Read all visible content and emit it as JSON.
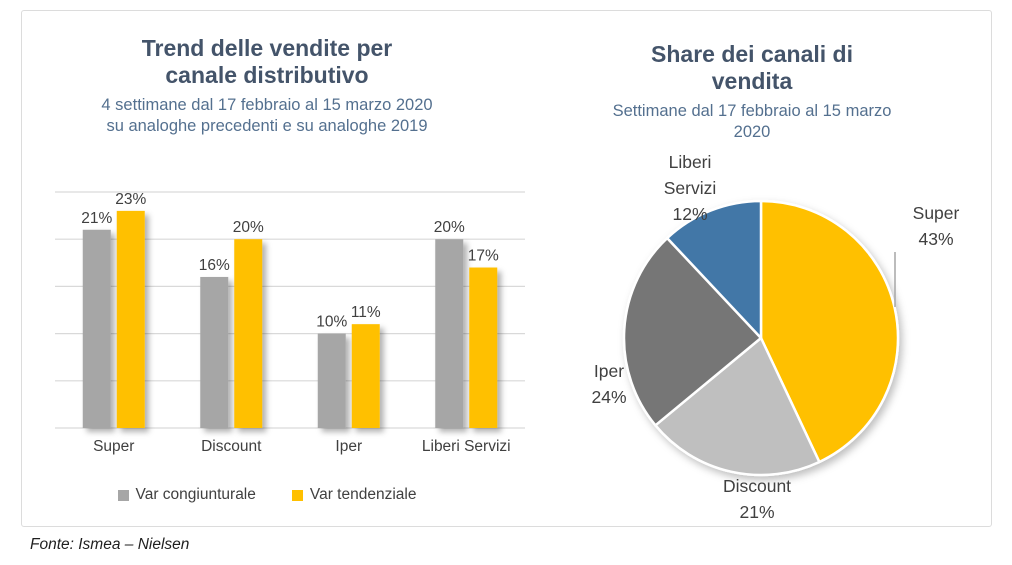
{
  "source_note": "Fonte: Ismea – Nielsen",
  "colors": {
    "title_text": "#44546A",
    "subtitle_text": "#54708F",
    "chart_text": "#404040",
    "gridline": "#D9D9D9",
    "container_border": "#DCDCDC",
    "bar_gray": "#A6A6A6",
    "bar_yellow": "#FFC000",
    "pie_light_gray": "#BFBFBF",
    "pie_dark_gray": "#767676",
    "pie_blue": "#4377A7"
  },
  "chart_data": [
    {
      "type": "bar",
      "title": "Trend delle vendite per canale distributivo",
      "subtitle": "4 settimane dal 17 febbraio al 15 marzo 2020 su analoghe precedenti e su analoghe 2019",
      "categories": [
        "Super",
        "Discount",
        "Iper",
        "Liberi Servizi"
      ],
      "series": [
        {
          "name": "Var congiunturale",
          "color": "#A6A6A6",
          "values": [
            21,
            16,
            10,
            20
          ]
        },
        {
          "name": "Var tendenziale",
          "color": "#FFC000",
          "values": [
            23,
            20,
            11,
            17
          ]
        }
      ],
      "value_suffix": "%",
      "ylim": [
        0,
        25
      ],
      "grid_step": 5,
      "grid": true,
      "legend_position": "bottom",
      "data_labels": true
    },
    {
      "type": "pie",
      "title": "Share dei canali di vendita",
      "subtitle": "Settimane dal 17 febbraio al 15 marzo 2020",
      "start_angle_deg": 0,
      "direction": "clockwise",
      "value_suffix": "%",
      "slices": [
        {
          "label": "Super",
          "value": 43,
          "color": "#FFC000"
        },
        {
          "label": "Discount",
          "value": 21,
          "color": "#BFBFBF"
        },
        {
          "label": "Iper",
          "value": 24,
          "color": "#767676"
        },
        {
          "label": "Liberi Servizi",
          "value": 12,
          "color": "#4377A7"
        }
      ]
    }
  ]
}
